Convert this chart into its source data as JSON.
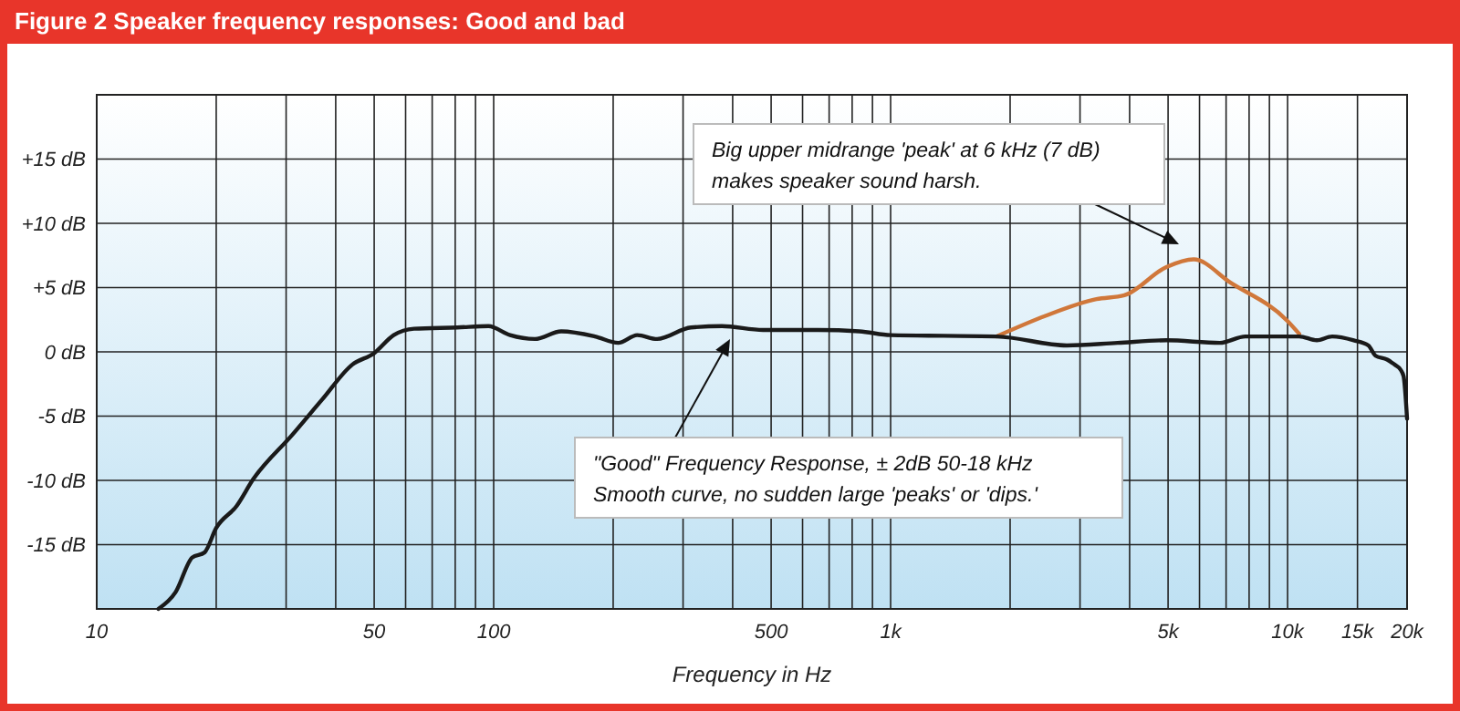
{
  "chart_data": {
    "type": "line",
    "title": "Figure 2 Speaker frequency responses: Good and bad",
    "xlabel": "Frequency in Hz",
    "log": "x",
    "xlim": [
      10,
      20000
    ],
    "ylim": [
      -20,
      20
    ],
    "xticks": [
      10,
      {
        "value": 20,
        "label": null
      },
      {
        "value": 30,
        "label": null
      },
      {
        "value": 40,
        "label": null
      },
      50,
      {
        "value": 60,
        "label": null
      },
      {
        "value": 70,
        "label": null
      },
      {
        "value": 80,
        "label": null
      },
      {
        "value": 90,
        "label": null
      },
      100,
      {
        "value": 200,
        "label": null
      },
      {
        "value": 300,
        "label": null
      },
      {
        "value": 400,
        "label": null
      },
      500,
      {
        "value": 600,
        "label": null
      },
      {
        "value": 700,
        "label": null
      },
      {
        "value": 800,
        "label": null
      },
      {
        "value": 900,
        "label": null
      },
      {
        "value": 1000,
        "label": "1k"
      },
      {
        "value": 2000,
        "label": null
      },
      {
        "value": 3000,
        "label": null
      },
      {
        "value": 4000,
        "label": null
      },
      {
        "value": 5000,
        "label": "5k"
      },
      {
        "value": 6000,
        "label": null
      },
      {
        "value": 7000,
        "label": null
      },
      {
        "value": 8000,
        "label": null
      },
      {
        "value": 9000,
        "label": null
      },
      {
        "value": 10000,
        "label": "10k"
      },
      {
        "value": 15000,
        "label": "15k"
      },
      {
        "value": 20000,
        "label": "20k"
      }
    ],
    "yticks": [
      {
        "value": -15,
        "label": "-15 dB"
      },
      {
        "value": -10,
        "label": "-10 dB"
      },
      {
        "value": -5,
        "label": "-5 dB"
      },
      {
        "value": 0,
        "label": "0 dB"
      },
      {
        "value": 5,
        "label": "+5 dB"
      },
      {
        "value": 10,
        "label": "+10 dB"
      },
      {
        "value": 15,
        "label": "+15 dB"
      }
    ],
    "grid": true,
    "line_style": "solid",
    "marker": "none",
    "series": [
      {
        "color": "#d0773a",
        "x": [
          1850,
          2455,
          3300,
          3880,
          4950,
          5800,
          7170,
          10000,
          10700
        ],
        "values": [
          1.2,
          2.8,
          4.1,
          4.4,
          6.6,
          7.2,
          5.4,
          2.4,
          1.4
        ]
      },
      {
        "color": "#1a1a1a",
        "x": [
          14.3,
          15.8,
          17.4,
          18.7,
          20,
          22.5,
          24.8,
          31,
          37,
          44,
          50,
          56,
          63,
          81,
          97,
          110,
          127,
          148,
          180,
          206,
          230,
          258,
          314,
          376,
          477,
          655,
          834,
          1000,
          1850,
          2780,
          3730,
          4950,
          6750,
          7830,
          10700,
          11850,
          12950,
          14680,
          15980,
          16650,
          17820,
          18620,
          19270,
          19600,
          20000
        ],
        "values": [
          -20,
          -18.7,
          -16,
          -15.6,
          -13.7,
          -12,
          -9.9,
          -6.5,
          -3.7,
          -1,
          -0.1,
          1.3,
          1.8,
          1.9,
          2,
          1.3,
          1,
          1.6,
          1.2,
          0.7,
          1.3,
          1,
          1.9,
          2,
          1.7,
          1.7,
          1.6,
          1.3,
          1.2,
          0.5,
          0.7,
          0.9,
          0.7,
          1.2,
          1.2,
          0.9,
          1.2,
          0.9,
          0.5,
          -0.3,
          -0.6,
          -1,
          -1.4,
          -1.9,
          -5.2
        ]
      }
    ],
    "annotations": [
      "Big upper midrange 'peak' at 6 kHz (7 dB)\nmakes speaker sound harsh.",
      "\"Good\" Frequency Response, ± 2dB 50-18 kHz\nSmooth curve, no sudden large 'peaks' or 'dips.'"
    ]
  }
}
